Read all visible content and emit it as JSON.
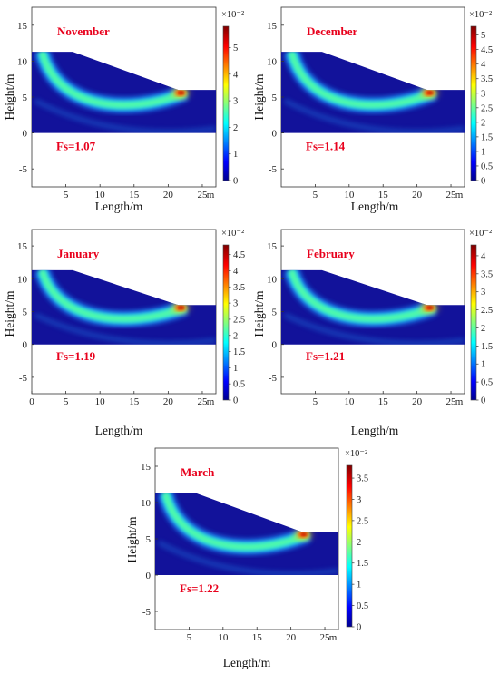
{
  "chart_data": [
    {
      "type": "heatmap",
      "month": "November",
      "fs_label": "Fs=1.07",
      "xlabel": "Length/m",
      "ylabel": "Height/m",
      "x_unit": "m",
      "x_ticks": [
        "5",
        "10",
        "15",
        "20",
        "25"
      ],
      "y_ticks": [
        "-5",
        "0",
        "5",
        "10",
        "15"
      ],
      "xlim": [
        0,
        27
      ],
      "ylim": [
        -7.5,
        17.5
      ],
      "slope_geometry": {
        "crest_height": 11.3,
        "crest_x_end": 6,
        "toe_x": 21.5,
        "toe_height": 6.0,
        "base_height": 0,
        "x_max": 27
      },
      "colorbar": {
        "min": 0,
        "max": 5.8,
        "ticks": [
          "0",
          "1",
          "2",
          "3",
          "4",
          "5"
        ],
        "multiplier": "×10⁻²"
      }
    },
    {
      "type": "heatmap",
      "month": "December",
      "fs_label": "Fs=1.14",
      "xlabel": "Length/m",
      "ylabel": "Height/m",
      "x_unit": "m",
      "x_ticks": [
        "5",
        "10",
        "15",
        "20",
        "25"
      ],
      "y_ticks": [
        "-5",
        "0",
        "5",
        "10",
        "15"
      ],
      "xlim": [
        0,
        27
      ],
      "ylim": [
        -7.5,
        17.5
      ],
      "slope_geometry": {
        "crest_height": 11.3,
        "crest_x_end": 6,
        "toe_x": 21.5,
        "toe_height": 6.0,
        "base_height": 0,
        "x_max": 27
      },
      "colorbar": {
        "min": 0,
        "max": 5.3,
        "ticks": [
          "0",
          "0.5",
          "1",
          "1.5",
          "2",
          "2.5",
          "3",
          "3.5",
          "4",
          "4.5",
          "5"
        ],
        "multiplier": "×10⁻²"
      }
    },
    {
      "type": "heatmap",
      "month": "January",
      "fs_label": "Fs=1.19",
      "xlabel": "Length/m",
      "ylabel": "Height/m",
      "x_unit": "m",
      "x_ticks": [
        "0",
        "5",
        "10",
        "15",
        "20",
        "25"
      ],
      "y_ticks": [
        "-5",
        "0",
        "5",
        "10",
        "15"
      ],
      "xlim": [
        0,
        27
      ],
      "ylim": [
        -7.5,
        17.5
      ],
      "slope_geometry": {
        "crest_height": 11.3,
        "crest_x_end": 6,
        "toe_x": 21.5,
        "toe_height": 6.0,
        "base_height": 0,
        "x_max": 27
      },
      "colorbar": {
        "min": 0,
        "max": 4.8,
        "ticks": [
          "0",
          "0.5",
          "1",
          "1.5",
          "2",
          "2.5",
          "3",
          "3.5",
          "4",
          "4.5"
        ],
        "multiplier": "×10⁻²"
      }
    },
    {
      "type": "heatmap",
      "month": "February",
      "fs_label": "Fs=1.21",
      "xlabel": "Length/m",
      "ylabel": "Height/m",
      "x_unit": "m",
      "x_ticks": [
        "5",
        "10",
        "15",
        "20",
        "25"
      ],
      "y_ticks": [
        "-5",
        "0",
        "5",
        "10",
        "15"
      ],
      "xlim": [
        0,
        27
      ],
      "ylim": [
        -7.5,
        17.5
      ],
      "slope_geometry": {
        "crest_height": 11.3,
        "crest_x_end": 6,
        "toe_x": 21.5,
        "toe_height": 6.0,
        "base_height": 0,
        "x_max": 27
      },
      "colorbar": {
        "min": 0,
        "max": 4.3,
        "ticks": [
          "0",
          "0.5",
          "1",
          "1.5",
          "2",
          "2.5",
          "3",
          "3.5",
          "4"
        ],
        "multiplier": "×10⁻²"
      }
    },
    {
      "type": "heatmap",
      "month": "March",
      "fs_label": "Fs=1.22",
      "xlabel": "Length/m",
      "ylabel": "Height/m",
      "x_unit": "m",
      "x_ticks": [
        "5",
        "10",
        "15",
        "20",
        "25"
      ],
      "y_ticks": [
        "-5",
        "0",
        "5",
        "10",
        "15"
      ],
      "xlim": [
        0,
        27
      ],
      "ylim": [
        -7.5,
        17.5
      ],
      "slope_geometry": {
        "crest_height": 11.3,
        "crest_x_end": 6,
        "toe_x": 21.5,
        "toe_height": 6.0,
        "base_height": 0,
        "x_max": 27
      },
      "colorbar": {
        "min": 0,
        "max": 3.8,
        "ticks": [
          "0",
          "0.5",
          "1",
          "1.5",
          "2",
          "2.5",
          "3",
          "3.5"
        ],
        "multiplier": "×10⁻²"
      }
    }
  ],
  "colormap": [
    "#00008f",
    "#0000ff",
    "#00ffff",
    "#ffff00",
    "#ff0000",
    "#800000"
  ]
}
